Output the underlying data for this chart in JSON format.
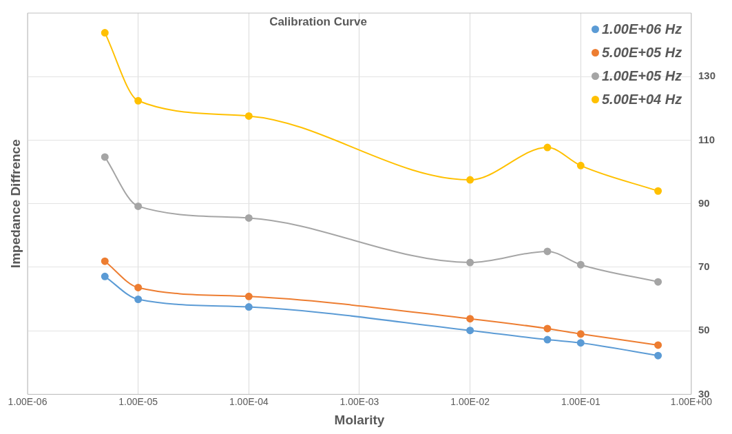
{
  "chart_data": {
    "type": "line",
    "title": "Calibration Curve",
    "xlabel": "Molarity",
    "ylabel": "Impedance Diffrence",
    "log": "x",
    "xlim": [
      1e-06,
      1
    ],
    "xticks": [
      {
        "value": 1e-06,
        "label": "1.00E-06"
      },
      {
        "value": 1e-05,
        "label": "1.00E-05"
      },
      {
        "value": 0.0001,
        "label": "1.00E-04"
      },
      {
        "value": 0.001,
        "label": "1.00E-03"
      },
      {
        "value": 0.01,
        "label": "1.00E-02"
      },
      {
        "value": 0.1,
        "label": "1.00E-01"
      },
      {
        "value": 1,
        "label": "1.00E+00"
      }
    ],
    "ylim": [
      30,
      150
    ],
    "yticks": [
      30,
      50,
      70,
      90,
      110,
      130
    ],
    "x": [
      5e-06,
      1e-05,
      0.0001,
      0.01,
      0.05,
      0.1,
      0.5
    ],
    "series": [
      {
        "name": "1.00E+06 Hz",
        "color": "#5b9bd5",
        "values": [
          67.1,
          59.9,
          57.5,
          50.1,
          47.2,
          46.2,
          42.2
        ]
      },
      {
        "name": "5.00E+05 Hz",
        "color": "#ed7d31",
        "values": [
          71.9,
          63.6,
          60.8,
          53.8,
          50.7,
          49,
          45.5
        ]
      },
      {
        "name": "1.00E+05 Hz",
        "color": "#a5a5a5",
        "values": [
          104.7,
          89.2,
          85.5,
          71.5,
          75,
          70.8,
          65.4
        ]
      },
      {
        "name": "5.00E+04 Hz",
        "color": "#ffc000",
        "values": [
          143.8,
          122.4,
          117.6,
          97.5,
          107.7,
          102,
          94
        ]
      }
    ],
    "grid": true,
    "legend": "top right",
    "marker": "circle",
    "line_style": "solid"
  }
}
